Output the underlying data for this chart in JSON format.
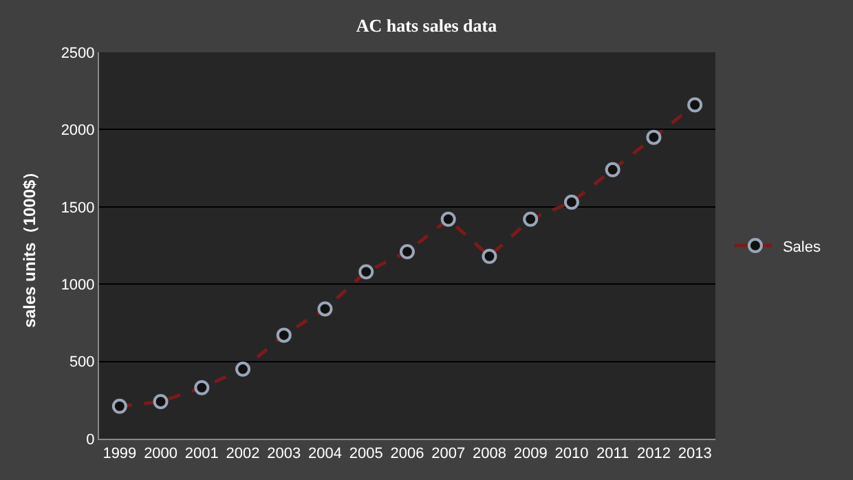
{
  "chart_data": {
    "type": "line",
    "title": "AC hats sales data",
    "ylabel": "sales units（1000$）",
    "categories": [
      "1999",
      "2000",
      "2001",
      "2002",
      "2003",
      "2004",
      "2005",
      "2006",
      "2007",
      "2008",
      "2009",
      "2010",
      "2011",
      "2012",
      "2013"
    ],
    "series": [
      {
        "name": "Sales",
        "color": "#7b1a1a",
        "values": [
          210,
          240,
          330,
          450,
          670,
          840,
          1080,
          1210,
          1420,
          1180,
          1420,
          1530,
          1740,
          1950,
          2160
        ]
      }
    ],
    "ylim": [
      0,
      2500
    ],
    "yticks": [
      0,
      500,
      1000,
      1500,
      2000,
      2500
    ],
    "grid": "y",
    "legend": "right",
    "marker": "circle",
    "line_style": "dashed"
  }
}
